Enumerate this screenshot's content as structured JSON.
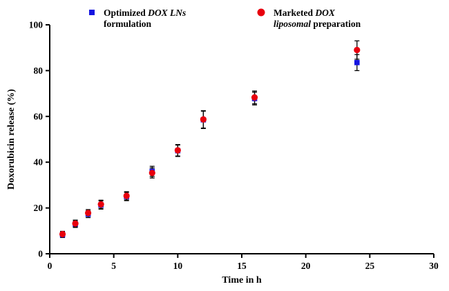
{
  "chart_data": {
    "type": "scatter",
    "title": "",
    "xlabel": "Time in h",
    "ylabel": "Doxorubicin release (%)",
    "xlim": [
      0,
      30
    ],
    "ylim": [
      0,
      100
    ],
    "xticks": [
      0,
      5,
      10,
      15,
      20,
      25,
      30
    ],
    "yticks": [
      0,
      20,
      40,
      60,
      80,
      100
    ],
    "grid": false,
    "legend_position": "top",
    "error_bar_color": "#000000",
    "x": [
      1,
      2,
      3,
      4,
      6,
      8,
      10,
      12,
      16,
      24
    ],
    "series": [
      {
        "name": "Optimized DOX LNs formulation",
        "marker": "square",
        "color": "#1414e0",
        "values": [
          8.3,
          13.0,
          17.3,
          21.3,
          25.0,
          36.0,
          45.0,
          58.5,
          67.8,
          83.5
        ],
        "errors": [
          1.2,
          1.5,
          1.5,
          1.8,
          1.8,
          2.2,
          2.5,
          3.8,
          2.8,
          3.5
        ]
      },
      {
        "name": "Marketed DOX liposomal preparation",
        "marker": "circle",
        "color": "#e8000d",
        "values": [
          8.6,
          13.2,
          17.8,
          21.6,
          25.3,
          35.3,
          45.2,
          58.7,
          68.3,
          89.0
        ],
        "errors": [
          1.2,
          1.5,
          1.5,
          1.8,
          1.8,
          2.2,
          2.5,
          3.8,
          2.8,
          4.0
        ]
      }
    ],
    "legend": [
      {
        "marker": "square",
        "color": "#1414e0",
        "lines": [
          [
            {
              "t": "Optimized ",
              "i": false
            },
            {
              "t": "DOX LNs",
              "i": true
            }
          ],
          [
            {
              "t": "formulation",
              "i": false
            }
          ]
        ]
      },
      {
        "marker": "circle",
        "color": "#e8000d",
        "lines": [
          [
            {
              "t": "Marketed ",
              "i": false
            },
            {
              "t": "DOX",
              "i": true
            }
          ],
          [
            {
              "t": "liposomal",
              "i": true
            },
            {
              "t": " preparation",
              "i": false
            }
          ]
        ]
      }
    ]
  }
}
